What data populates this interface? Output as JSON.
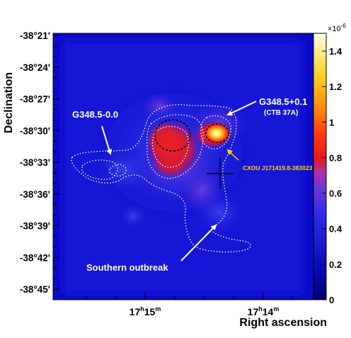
{
  "chart_data": {
    "type": "heatmap",
    "xlabel": "Right ascension",
    "ylabel": "Declination",
    "xticks": [
      {
        "value": "17h15m",
        "hours": "17",
        "minutes": "15"
      },
      {
        "value": "17h14m",
        "hours": "17",
        "minutes": "14"
      }
    ],
    "yticks": [
      "-38°21'",
      "-38°24'",
      "-38°27'",
      "-38°30'",
      "-38°33'",
      "-38°36'",
      "-38°39'",
      "-38°42'",
      "-38°45'"
    ],
    "colorbar": {
      "min": 0,
      "max": 1.5,
      "exponent_label": "×10",
      "exponent": "-6",
      "ticks": [
        "0",
        "0.2",
        "0.4",
        "0.6",
        "0.8",
        "1",
        "1.2",
        "1.4"
      ],
      "tick_values": [
        0,
        0.2,
        0.4,
        0.6,
        0.8,
        1.0,
        1.2,
        1.4
      ]
    },
    "annotations": [
      {
        "text": "G348.5+0.1",
        "sub": "(CTB 37A)"
      },
      {
        "text": "G348.5-0.0"
      },
      {
        "text": "CXOU J171419.8-383023"
      },
      {
        "text": "Southern outbreak"
      }
    ],
    "colors": {
      "background": "#0b0bc8",
      "blob_red": "#e81818",
      "hotspot": "#fff8a0",
      "annotation_white": "#ffffff",
      "annotation_yellow": "#ffd800"
    }
  }
}
